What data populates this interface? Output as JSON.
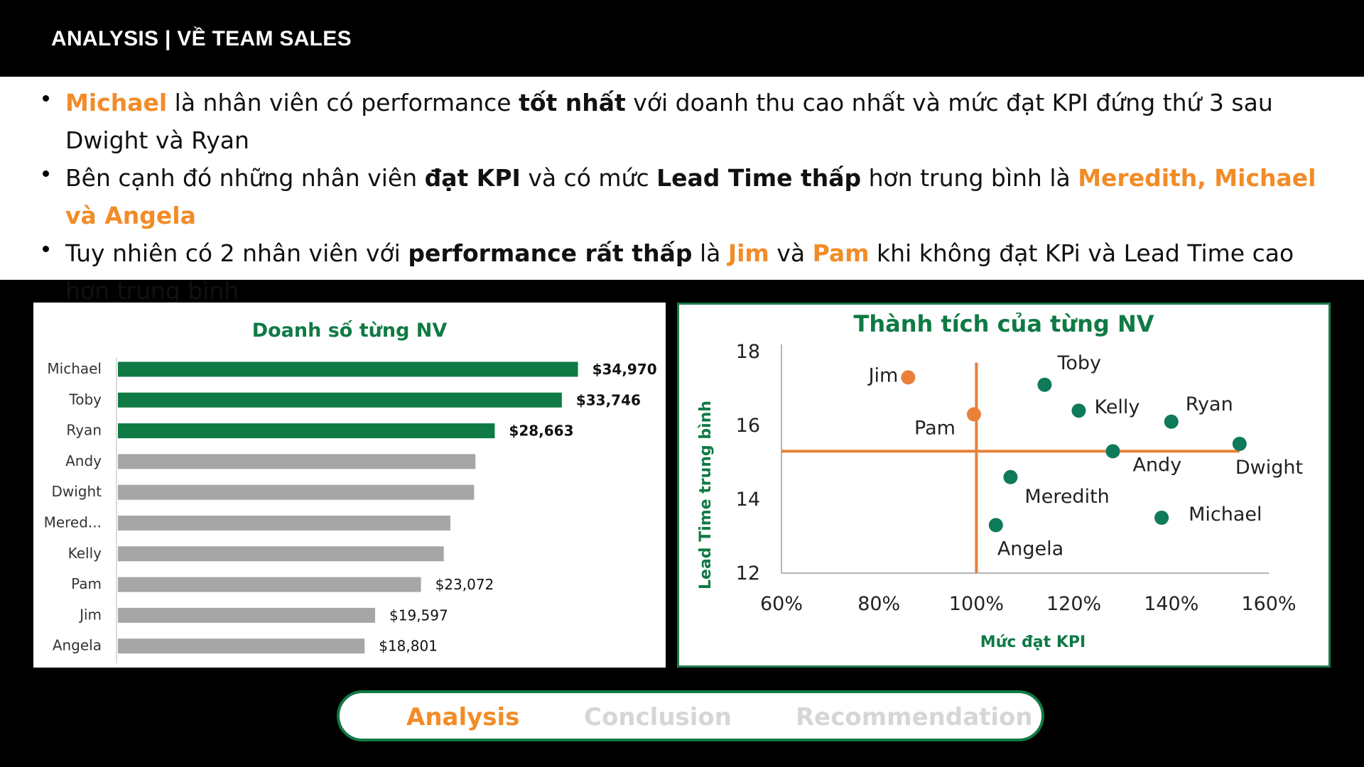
{
  "header": {
    "title": "ANALYSIS | VỀ TEAM SALES"
  },
  "bullets": [
    {
      "parts": [
        {
          "t": "Michael",
          "s": "o"
        },
        {
          "t": " là nhân viên có performance ",
          "s": ""
        },
        {
          "t": "tốt nhất",
          "s": "b"
        },
        {
          "t": " với doanh thu cao nhất và mức đạt KPI đứng thứ 3 sau Dwight và Ryan",
          "s": ""
        }
      ]
    },
    {
      "parts": [
        {
          "t": "Bên cạnh đó những nhân viên ",
          "s": ""
        },
        {
          "t": "đạt KPI",
          "s": "b"
        },
        {
          "t": " và có mức ",
          "s": ""
        },
        {
          "t": "Lead Time thấp",
          "s": "b"
        },
        {
          "t": " hơn trung bình là ",
          "s": ""
        },
        {
          "t": "Meredith, Michael và Angela",
          "s": "o"
        }
      ]
    },
    {
      "parts": [
        {
          "t": "Tuy nhiên có 2 nhân viên với ",
          "s": ""
        },
        {
          "t": "performance rất thấp",
          "s": "b"
        },
        {
          "t": " là ",
          "s": ""
        },
        {
          "t": "Jim",
          "s": "o"
        },
        {
          "t": " và ",
          "s": ""
        },
        {
          "t": "Pam",
          "s": "o"
        },
        {
          "t": " khi không đạt KPi và Lead Time cao hơn trung bình",
          "s": ""
        }
      ]
    }
  ],
  "chart_data": [
    {
      "type": "bar",
      "orientation": "horizontal",
      "title": "Doanh số từng NV",
      "categories": [
        "Michael",
        "Toby",
        "Ryan",
        "Andy",
        "Dwight",
        "Mered...",
        "Kelly",
        "Pam",
        "Jim",
        "Angela"
      ],
      "values": [
        34970,
        33746,
        28663,
        27200,
        27100,
        25300,
        24800,
        23072,
        19597,
        18801
      ],
      "labels": [
        "$34,970",
        "$33,746",
        "$28,663",
        "",
        "",
        "",
        "",
        "$23,072",
        "$19,597",
        "$18,801"
      ],
      "highlight": [
        true,
        true,
        true,
        false,
        false,
        false,
        false,
        false,
        false,
        false
      ],
      "xlim": [
        0,
        36500
      ],
      "colors": {
        "highlight": "#0f7a44",
        "normal": "#a6a6a6"
      }
    },
    {
      "type": "scatter",
      "title": "Thành tích của từng NV",
      "xlabel": "Mức đạt KPI",
      "ylabel": "Lead Time trung bình",
      "xlim": [
        60,
        160
      ],
      "ylim": [
        12,
        18
      ],
      "xticks": [
        "60%",
        "80%",
        "100%",
        "120%",
        "140%",
        "160%"
      ],
      "xtick_values": [
        60,
        80,
        100,
        120,
        140,
        160
      ],
      "yticks": [
        "18",
        "16",
        "14",
        "12"
      ],
      "ytick_values": [
        18,
        16,
        14,
        12
      ],
      "reference_lines": {
        "x": 100,
        "y": 15.3
      },
      "points": [
        {
          "name": "Jim",
          "x": 86,
          "y": 17.3,
          "group": "low"
        },
        {
          "name": "Pam",
          "x": 99.5,
          "y": 16.3,
          "group": "low"
        },
        {
          "name": "Toby",
          "x": 114,
          "y": 17.1,
          "group": "good"
        },
        {
          "name": "Kelly",
          "x": 121,
          "y": 16.4,
          "group": "good"
        },
        {
          "name": "Ryan",
          "x": 140,
          "y": 16.1,
          "group": "good"
        },
        {
          "name": "Andy",
          "x": 128,
          "y": 15.3,
          "group": "good"
        },
        {
          "name": "Dwight",
          "x": 154,
          "y": 15.5,
          "group": "good"
        },
        {
          "name": "Meredith",
          "x": 107,
          "y": 14.6,
          "group": "good"
        },
        {
          "name": "Michael",
          "x": 138,
          "y": 13.5,
          "group": "good"
        },
        {
          "name": "Angela",
          "x": 104,
          "y": 13.3,
          "group": "good"
        }
      ],
      "colors": {
        "low": "#e8803a",
        "good": "#0f7a5a",
        "axis_text": "#0f7a44",
        "ref_line": "#e8803a"
      }
    }
  ],
  "nav": {
    "items": [
      {
        "label": "Analysis",
        "active": true
      },
      {
        "label": "Conclusion",
        "active": false
      },
      {
        "label": "Recommendation",
        "active": false
      }
    ]
  }
}
